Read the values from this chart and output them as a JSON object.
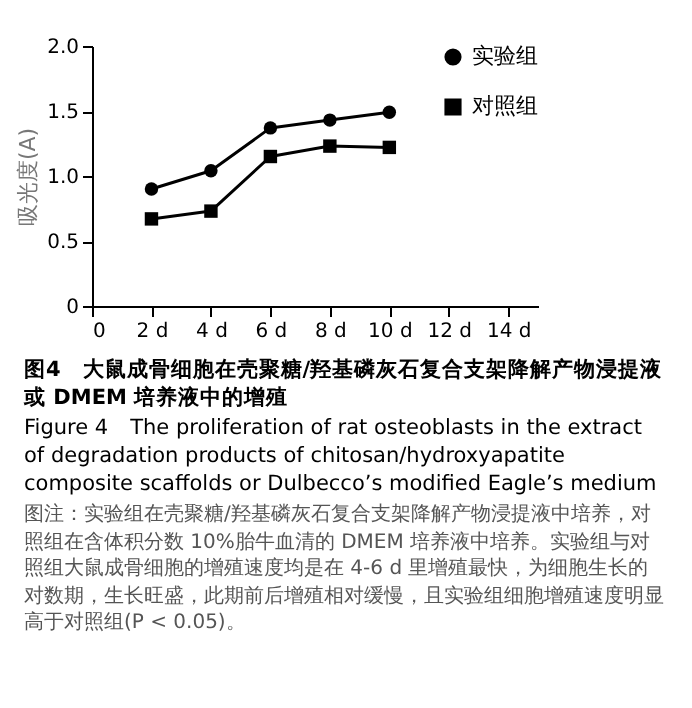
{
  "chart_data": {
    "type": "line",
    "title": "图4　大鼠成骨细胞在壳聚糖/羟基磷灰石复合支架降解产物浸提液或 DMEM 培养液中的增殖",
    "subtitle": "Figure 4　The proliferation of rat osteoblasts in the extract of degradation products of chitosan/hydroxyapatite composite scaffolds or Dulbecco’s modified Eagle’s medium",
    "annotations": [
      "图注：实验组在壳聚糖/羟基磷灰石复合支架降解产物浸提液中培养，对照组在含体积分数 10%胎牛血清的 DMEM 培养液中培养。实验组与对照组大鼠成骨细胞的增殖速度均是在 4-6 d 里增殖最快，为细胞生长的对数期，生长旺盛，此期前后增殖相对缓慢，且实验组细胞增殖速度明显高于对照组(P < 0.05)。"
    ],
    "ylabel": "吸光度(A)",
    "x": [
      2,
      4,
      6,
      8,
      10
    ],
    "series": [
      {
        "name": "实验组",
        "color": "#000000",
        "marker": "circle",
        "values": [
          0.9,
          1.04,
          1.37,
          1.43,
          1.49
        ]
      },
      {
        "name": "对照组",
        "color": "#000000",
        "marker": "square",
        "values": [
          0.67,
          0.73,
          1.15,
          1.23,
          1.22
        ]
      }
    ],
    "xlim": [
      0,
      15
    ],
    "xticks": [
      0,
      {
        "value": 2,
        "label": "2 d"
      },
      {
        "value": 4,
        "label": "4 d"
      },
      {
        "value": 6,
        "label": "6 d"
      },
      {
        "value": 8,
        "label": "8 d"
      },
      {
        "value": 10,
        "label": "10 d"
      },
      {
        "value": 12,
        "label": "12 d"
      },
      {
        "value": 14,
        "label": "14 d"
      }
    ],
    "ylim": [
      0,
      2
    ],
    "yticks": [
      0,
      0.5,
      {
        "value": 1,
        "label": "1.0"
      },
      1.5,
      {
        "value": 2,
        "label": "2.0"
      }
    ],
    "legend": "top right",
    "grid": false,
    "line_style": "solid"
  }
}
